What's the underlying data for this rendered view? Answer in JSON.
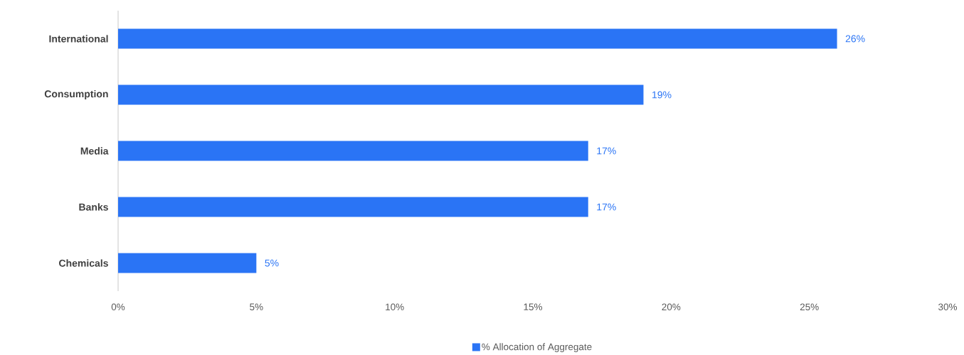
{
  "chart_data": {
    "type": "bar",
    "orientation": "horizontal",
    "categories": [
      "International",
      "Consumption",
      "Media",
      "Banks",
      "Chemicals"
    ],
    "series": [
      {
        "name": "% Allocation of Aggregate",
        "color": "#2a74f5",
        "values": [
          26,
          19,
          17,
          17,
          5
        ],
        "value_labels": [
          "26%",
          "19%",
          "17%",
          "17%",
          "5%"
        ]
      }
    ],
    "xlim": [
      0,
      30
    ],
    "xticks": [
      {
        "value": 0,
        "label": "0%"
      },
      {
        "value": 5,
        "label": "5%"
      },
      {
        "value": 10,
        "label": "10%"
      },
      {
        "value": 15,
        "label": "15%"
      },
      {
        "value": 20,
        "label": "20%"
      },
      {
        "value": 25,
        "label": "25%"
      },
      {
        "value": 30,
        "label": "30%"
      }
    ],
    "grid": false,
    "legend": "bottom"
  }
}
